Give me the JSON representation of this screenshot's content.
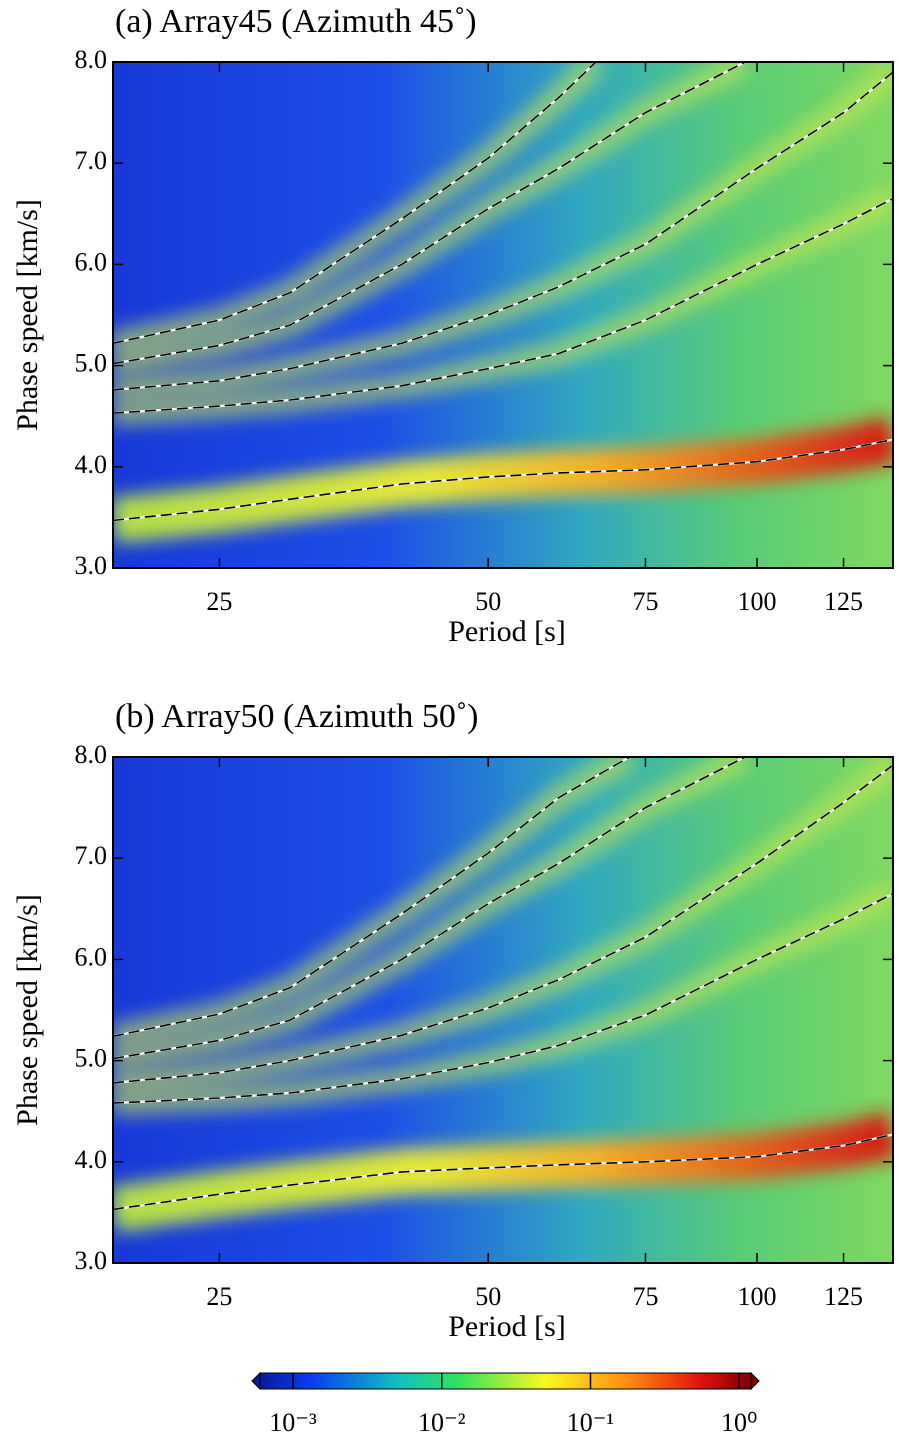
{
  "chart_data": [
    {
      "type": "line",
      "title": "(a) Array45 (Azimuth 45˚)",
      "x_label": "Period [s]",
      "y_label": "Phase speed [km/s]",
      "x_scale": "log",
      "xlim": [
        19,
        142
      ],
      "xticks": [
        25,
        50,
        75,
        100,
        125
      ],
      "ylim": [
        3,
        8
      ],
      "yticks": [
        {
          "value": 3,
          "label": "3.0"
        },
        {
          "value": 4,
          "label": "4.0"
        },
        {
          "value": 5,
          "label": "5.0"
        },
        {
          "value": 6,
          "label": "6.0"
        },
        {
          "value": 7,
          "label": "7.0"
        },
        {
          "value": 8,
          "label": "8.0"
        }
      ],
      "series": [
        {
          "color": "#000000",
          "x": [
            19,
            25,
            30,
            40,
            50,
            60,
            75,
            100,
            125,
            142
          ],
          "values": [
            3.47,
            3.58,
            3.68,
            3.83,
            3.9,
            3.94,
            3.97,
            4.05,
            4.17,
            4.27
          ]
        },
        {
          "color": "#000000",
          "x": [
            19,
            25,
            30,
            40,
            50,
            60,
            75,
            100,
            125,
            142
          ],
          "values": [
            4.53,
            4.6,
            4.66,
            4.8,
            4.97,
            5.12,
            5.45,
            6.0,
            6.4,
            6.65
          ]
        },
        {
          "color": "#000000",
          "x": [
            19,
            25,
            30,
            40,
            50,
            60,
            75,
            100,
            125,
            142
          ],
          "values": [
            4.76,
            4.85,
            4.97,
            5.22,
            5.5,
            5.78,
            6.2,
            6.95,
            7.5,
            7.9
          ]
        },
        {
          "color": "#000000",
          "x": [
            19,
            25,
            30,
            40,
            50,
            60,
            75,
            97
          ],
          "values": [
            5.02,
            5.2,
            5.4,
            6.0,
            6.55,
            6.95,
            7.5,
            8.0
          ]
        },
        {
          "color": "#000000",
          "x": [
            19,
            25,
            30,
            40,
            50,
            60,
            66
          ],
          "values": [
            5.22,
            5.45,
            5.72,
            6.45,
            7.05,
            7.65,
            8.0
          ]
        }
      ]
    },
    {
      "type": "line",
      "title": "(b) Array50 (Azimuth 50˚)",
      "x_label": "Period [s]",
      "y_label": "Phase speed [km/s]",
      "x_scale": "log",
      "xlim": [
        19,
        142
      ],
      "xticks": [
        25,
        50,
        75,
        100,
        125
      ],
      "ylim": [
        3,
        8
      ],
      "yticks": [
        {
          "value": 3,
          "label": "3.0"
        },
        {
          "value": 4,
          "label": "4.0"
        },
        {
          "value": 5,
          "label": "5.0"
        },
        {
          "value": 6,
          "label": "6.0"
        },
        {
          "value": 7,
          "label": "7.0"
        },
        {
          "value": 8,
          "label": "8.0"
        }
      ],
      "series": [
        {
          "color": "#000000",
          "x": [
            19,
            25,
            30,
            40,
            50,
            60,
            75,
            100,
            125,
            142
          ],
          "values": [
            3.53,
            3.68,
            3.77,
            3.9,
            3.94,
            3.97,
            4.0,
            4.05,
            4.16,
            4.27
          ]
        },
        {
          "color": "#000000",
          "x": [
            19,
            25,
            30,
            40,
            50,
            60,
            75,
            100,
            125,
            142
          ],
          "values": [
            4.58,
            4.63,
            4.68,
            4.82,
            4.98,
            5.15,
            5.45,
            6.0,
            6.4,
            6.65
          ]
        },
        {
          "color": "#000000",
          "x": [
            19,
            25,
            30,
            40,
            50,
            60,
            75,
            100,
            125,
            142
          ],
          "values": [
            4.78,
            4.88,
            5.0,
            5.25,
            5.52,
            5.8,
            6.22,
            6.95,
            7.55,
            7.92
          ]
        },
        {
          "color": "#000000",
          "x": [
            19,
            25,
            30,
            40,
            50,
            60,
            75,
            97
          ],
          "values": [
            5.02,
            5.2,
            5.4,
            6.0,
            6.55,
            6.95,
            7.5,
            8.0
          ]
        },
        {
          "color": "#000000",
          "x": [
            19,
            25,
            30,
            40,
            50,
            60,
            72
          ],
          "values": [
            5.24,
            5.46,
            5.72,
            6.45,
            7.05,
            7.6,
            8.0
          ]
        }
      ]
    },
    {
      "type": "colorbar",
      "x_scale": "log",
      "xlim": [
        0.0006,
        1.2
      ],
      "xticks": [
        {
          "value": 0.001,
          "label": "10⁻³"
        },
        {
          "value": 0.01,
          "label": "10⁻²"
        },
        {
          "value": 0.1,
          "label": "10⁻¹"
        },
        {
          "value": 1,
          "label": "10⁰"
        }
      ]
    }
  ]
}
